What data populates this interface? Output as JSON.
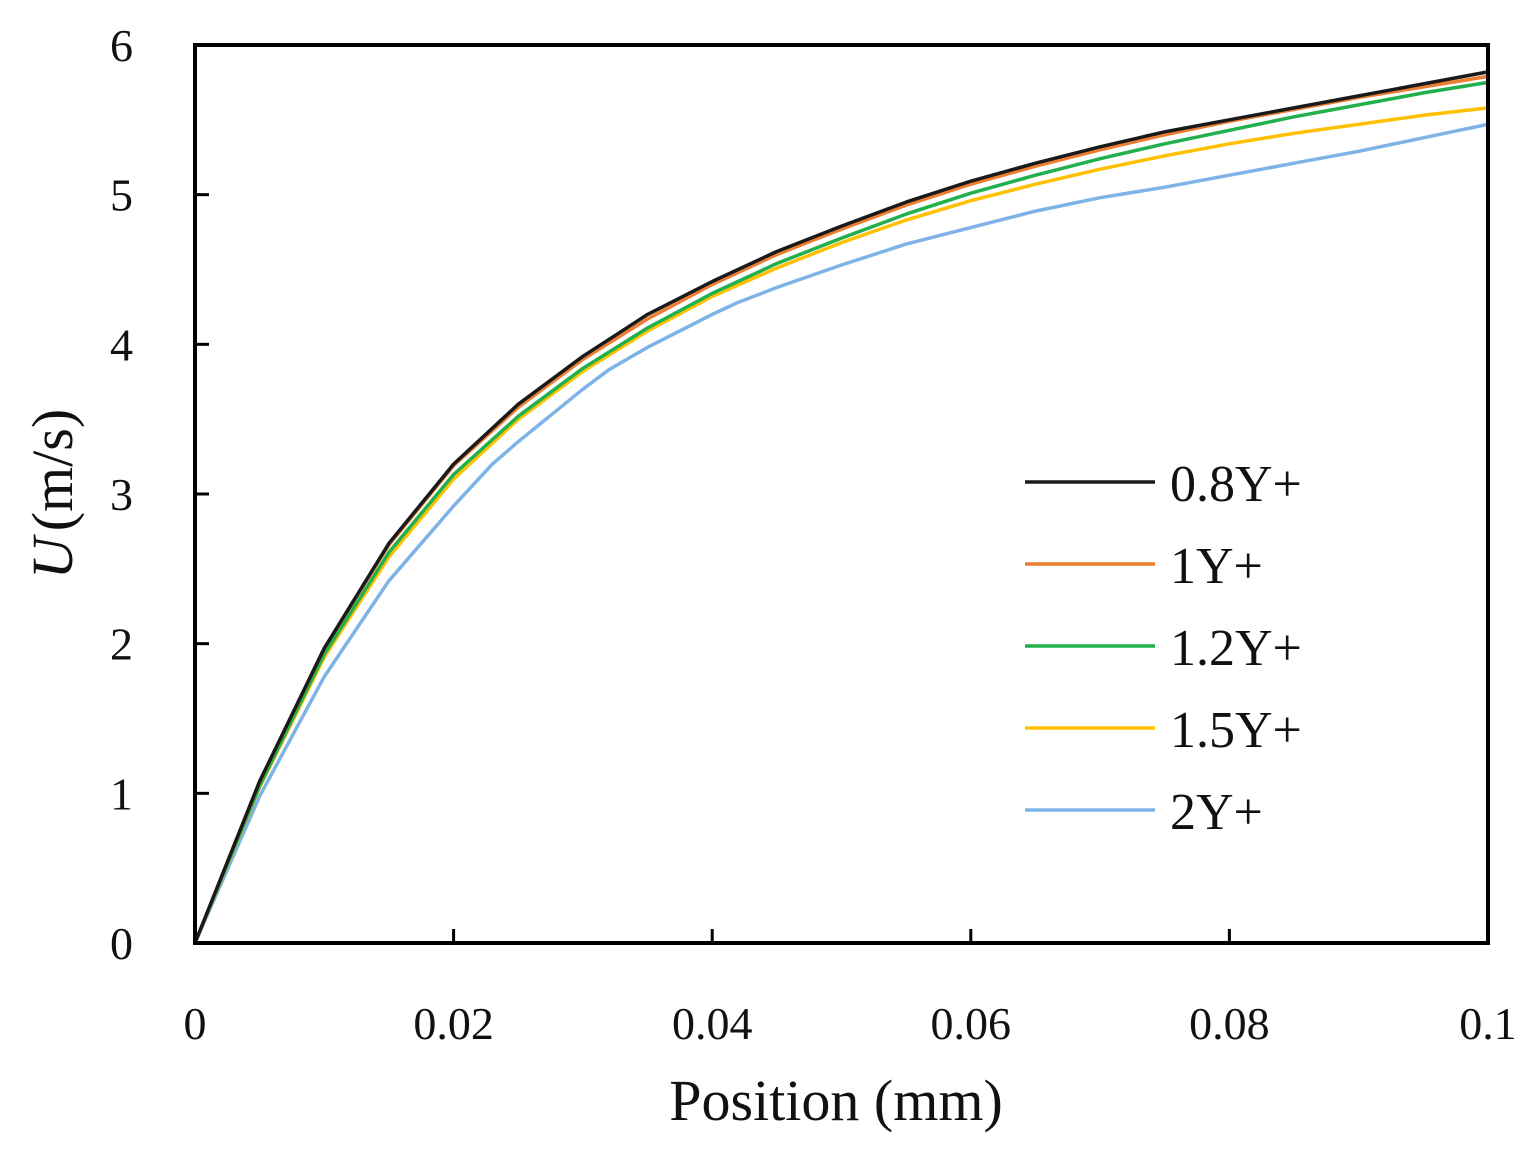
{
  "chart_data": {
    "type": "line",
    "title": "",
    "xlabel": "Position (mm)",
    "ylabel_var": "U",
    "ylabel_unit": "(m/s)",
    "xlim": [
      0,
      0.1
    ],
    "ylim": [
      0,
      6
    ],
    "xticks": [
      0,
      0.02,
      0.04,
      0.06,
      0.08,
      0.1
    ],
    "xtick_labels": [
      "0",
      "0.02",
      "0.04",
      "0.06",
      "0.08",
      "0.1"
    ],
    "yticks": [
      0,
      1,
      2,
      3,
      4,
      5,
      6
    ],
    "ytick_labels": [
      "0",
      "1",
      "2",
      "3",
      "4",
      "5",
      "6"
    ],
    "grid": false,
    "legend_position": "center-right",
    "series": [
      {
        "name": "0.8Y+",
        "color": "#1a1a1a",
        "x": [
          0,
          0.005,
          0.01,
          0.015,
          0.02,
          0.025,
          0.03,
          0.035,
          0.04,
          0.045,
          0.05,
          0.055,
          0.06,
          0.065,
          0.07,
          0.075,
          0.08,
          0.085,
          0.09,
          0.095,
          0.1
        ],
        "y": [
          0,
          1.08,
          1.97,
          2.67,
          3.2,
          3.6,
          3.92,
          4.2,
          4.42,
          4.62,
          4.79,
          4.95,
          5.09,
          5.21,
          5.32,
          5.42,
          5.5,
          5.58,
          5.66,
          5.74,
          5.82
        ]
      },
      {
        "name": "1Y+",
        "color": "#ed7d31",
        "x": [
          0,
          0.005,
          0.01,
          0.015,
          0.02,
          0.025,
          0.03,
          0.035,
          0.04,
          0.045,
          0.05,
          0.055,
          0.06,
          0.065,
          0.07,
          0.075,
          0.08,
          0.085,
          0.09,
          0.095,
          0.1
        ],
        "y": [
          0,
          1.08,
          1.97,
          2.66,
          3.19,
          3.58,
          3.9,
          4.17,
          4.4,
          4.6,
          4.77,
          4.93,
          5.07,
          5.19,
          5.3,
          5.4,
          5.49,
          5.57,
          5.65,
          5.72,
          5.79
        ]
      },
      {
        "name": "1.2Y+",
        "color": "#21b04b",
        "x": [
          0,
          0.005,
          0.01,
          0.015,
          0.02,
          0.025,
          0.03,
          0.035,
          0.04,
          0.045,
          0.05,
          0.055,
          0.06,
          0.065,
          0.07,
          0.075,
          0.08,
          0.085,
          0.09,
          0.095,
          0.1
        ],
        "y": [
          0,
          1.05,
          1.93,
          2.61,
          3.13,
          3.52,
          3.84,
          4.11,
          4.34,
          4.54,
          4.71,
          4.87,
          5.01,
          5.13,
          5.24,
          5.34,
          5.43,
          5.52,
          5.6,
          5.68,
          5.75
        ]
      },
      {
        "name": "1.5Y+",
        "color": "#ffc000",
        "x": [
          0,
          0.005,
          0.01,
          0.015,
          0.02,
          0.025,
          0.03,
          0.035,
          0.04,
          0.045,
          0.05,
          0.055,
          0.06,
          0.065,
          0.07,
          0.075,
          0.08,
          0.085,
          0.09,
          0.095,
          0.1
        ],
        "y": [
          0,
          1.04,
          1.91,
          2.58,
          3.1,
          3.5,
          3.82,
          4.09,
          4.32,
          4.51,
          4.68,
          4.83,
          4.96,
          5.07,
          5.17,
          5.26,
          5.34,
          5.41,
          5.47,
          5.53,
          5.58
        ]
      },
      {
        "name": "2Y+",
        "color": "#7db3e6",
        "x": [
          0,
          0.005,
          0.01,
          0.015,
          0.02,
          0.023,
          0.025,
          0.03,
          0.032,
          0.035,
          0.04,
          0.042,
          0.045,
          0.05,
          0.055,
          0.06,
          0.065,
          0.07,
          0.075,
          0.08,
          0.085,
          0.09,
          0.095,
          0.1
        ],
        "y": [
          0,
          0.98,
          1.78,
          2.42,
          2.92,
          3.2,
          3.35,
          3.7,
          3.83,
          3.98,
          4.2,
          4.28,
          4.38,
          4.53,
          4.67,
          4.78,
          4.89,
          4.98,
          5.05,
          5.13,
          5.21,
          5.29,
          5.38,
          5.47
        ]
      }
    ]
  }
}
